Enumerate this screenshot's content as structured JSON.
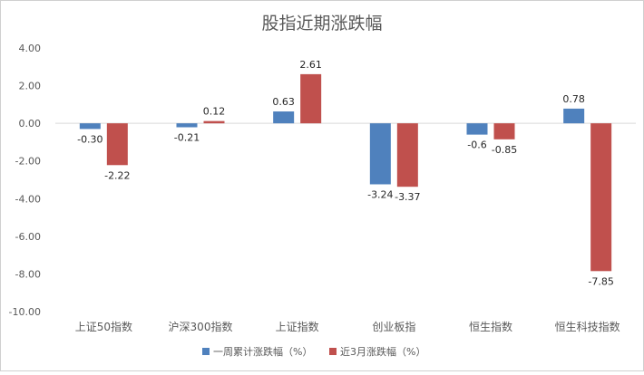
{
  "chart_data": {
    "type": "bar",
    "title": "股指近期涨跌幅",
    "categories": [
      "上证50指数",
      "沪深300指数",
      "上证指数",
      "创业板指",
      "恒生指数",
      "恒生科技指数"
    ],
    "series": [
      {
        "name": "一周累计涨跌幅（%）",
        "color": "#4f81bd",
        "values": [
          -0.3,
          -0.21,
          0.63,
          -3.24,
          -0.6,
          0.78
        ],
        "labels": [
          "-0.30",
          "-0.21",
          "0.63",
          "-3.24",
          "-0.6",
          "0.78"
        ]
      },
      {
        "name": "近3月涨跌幅（%）",
        "color": "#c0504d",
        "values": [
          -2.22,
          0.12,
          2.61,
          -3.37,
          -0.85,
          -7.85
        ],
        "labels": [
          "-2.22",
          "0.12",
          "2.61",
          "-3.37",
          "-0.85",
          "-7.85"
        ]
      }
    ],
    "ylim": [
      -10,
      4
    ],
    "yticks": [
      "4.00",
      "2.00",
      "0.00",
      "-2.00",
      "-4.00",
      "-6.00",
      "-8.00",
      "-10.00"
    ],
    "ytick_values": [
      4,
      2,
      0,
      -2,
      -4,
      -6,
      -8,
      -10
    ],
    "grid": false,
    "legend_position": "bottom"
  }
}
